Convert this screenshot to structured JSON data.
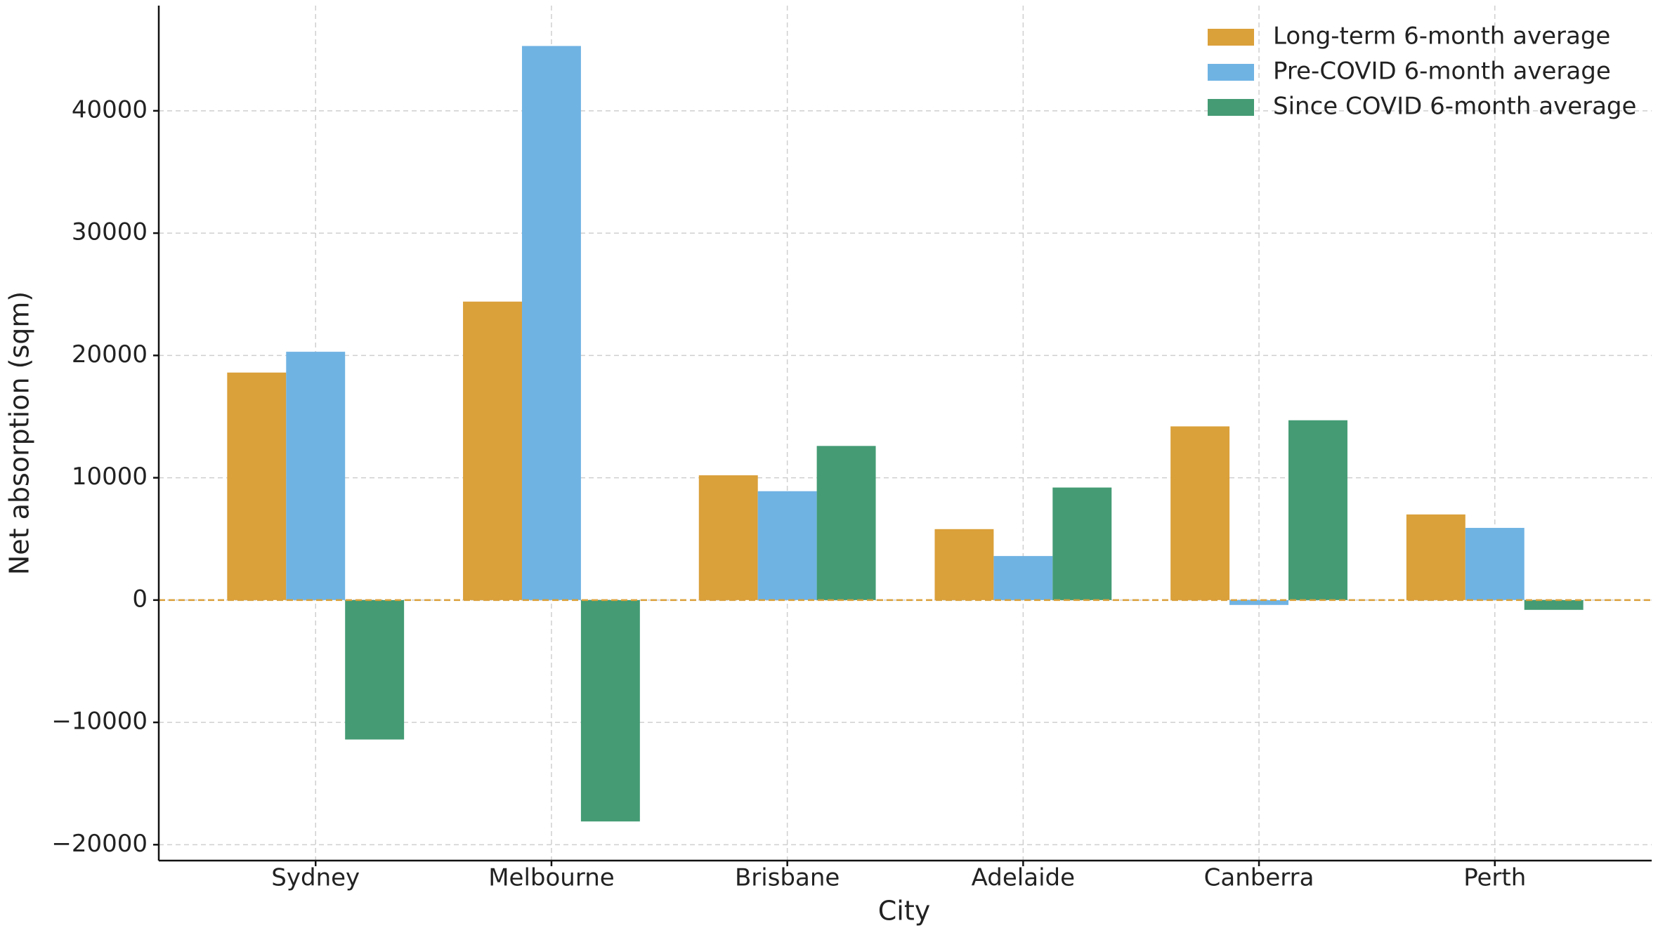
{
  "chart_data": {
    "type": "bar",
    "x_label": "City",
    "y_label": "Net absorption (sqm)",
    "categories": [
      "Sydney",
      "Melbourne",
      "Brisbane",
      "Adelaide",
      "Canberra",
      "Perth"
    ],
    "series": [
      {
        "name": "Long-term 6-month average",
        "color": "#daa03a",
        "values": [
          18600,
          24400,
          10200,
          5800,
          14200,
          7000
        ]
      },
      {
        "name": "Pre-COVID 6-month average",
        "color": "#6fb3e3",
        "values": [
          20300,
          45300,
          8900,
          3600,
          -400,
          5900
        ]
      },
      {
        "name": "Since COVID 6-month average",
        "color": "#449b74",
        "values": [
          -11400,
          -18100,
          12600,
          9200,
          14700,
          -800
        ]
      }
    ],
    "ylim": [
      -21300,
      48600
    ],
    "yticks": [
      {
        "value": -20000,
        "label": "−20000"
      },
      {
        "value": -10000,
        "label": "−10000"
      },
      0,
      10000,
      20000,
      30000,
      40000
    ],
    "grid": true,
    "legend": "upper right",
    "zero_line_color": "#daa03a"
  }
}
